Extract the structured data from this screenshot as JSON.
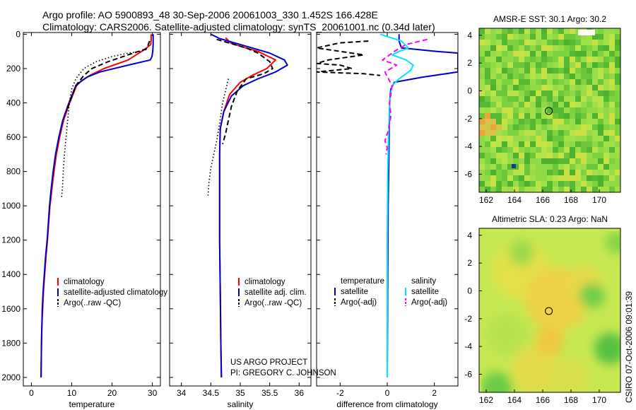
{
  "header": {
    "line1": "Argo profile: AO 5900893_48 30-Sep-2006 20061003_330 1.452S 166.428E",
    "line2": "Climatology: CARS2006. Satellite-adjusted climatology: synTS_20061001.nc (0.34d later)"
  },
  "credit": {
    "project": "US ARGO PROJECT",
    "pi": "PI: GREGORY C. JOHNSON",
    "stamp": "CSIRO 07-Oct-2006 09:01:39"
  },
  "colors": {
    "climatology": "#ff0000",
    "satellite": "#0000cc",
    "argo": "#000000",
    "satellite_salinity": "#00e5ff",
    "argo_salinity_adj": "#ff00ff"
  },
  "depth_axis": {
    "ylim": [
      2050,
      -10
    ],
    "ticks": [
      "0",
      "200",
      "400",
      "600",
      "800",
      "1000",
      "1200",
      "1400",
      "1600",
      "1800",
      "2000"
    ]
  },
  "chart_data": [
    {
      "type": "line",
      "xlabel": "temperature",
      "xlim": [
        -2,
        32
      ],
      "xticks": [
        0,
        10,
        20,
        30
      ],
      "legend": [
        "climatology",
        "satellite-adjusted climatology",
        "Argo(..raw -QC)"
      ],
      "series": [
        {
          "name": "climatology",
          "style": "solid",
          "x": [
            29.7,
            29.7,
            29.6,
            28,
            24,
            18,
            14.5,
            12.5,
            11.2,
            9.5,
            8,
            7,
            6.2,
            5.6,
            5.1,
            4.6,
            4.3,
            4.0,
            3.6,
            3.3,
            3.0,
            2.8,
            2.6,
            2.5,
            2.4
          ],
          "y": [
            0,
            30,
            60,
            90,
            150,
            200,
            240,
            270,
            300,
            400,
            500,
            600,
            700,
            800,
            900,
            1000,
            1100,
            1200,
            1300,
            1400,
            1500,
            1600,
            1700,
            1800,
            2000
          ]
        },
        {
          "name": "satellite-adjusted climatology",
          "style": "solid",
          "x": [
            30.2,
            30.2,
            30.2,
            30.1,
            29.9,
            29.5,
            24,
            17,
            13.8,
            12,
            11,
            9.3,
            7.8,
            6.8,
            6.0,
            5.4,
            4.9,
            4.5,
            4.2,
            3.9,
            3.5,
            3.2,
            2.9,
            2.7,
            2.5,
            2.4
          ],
          "y": [
            0,
            30,
            60,
            100,
            130,
            150,
            180,
            220,
            250,
            280,
            300,
            400,
            500,
            600,
            700,
            800,
            900,
            1000,
            1100,
            1200,
            1300,
            1400,
            1500,
            1600,
            1800,
            2000
          ]
        },
        {
          "name": "Argo(..raw -QC)",
          "style": "dash",
          "x": [
            29.3,
            29.0,
            28.5,
            24,
            19,
            15,
            13,
            12,
            11,
            9.8,
            8.6
          ],
          "y": [
            40,
            60,
            85,
            120,
            160,
            200,
            240,
            270,
            300,
            380,
            450
          ]
        },
        {
          "name": "",
          "style": "dot",
          "x": [
            28.5,
            27,
            24,
            20,
            16,
            13,
            11,
            10,
            9.4,
            9.0,
            8.6,
            8.2,
            7.9,
            7.7,
            7.5
          ],
          "y": [
            90,
            100,
            110,
            130,
            160,
            200,
            260,
            320,
            400,
            500,
            600,
            700,
            800,
            900,
            950
          ]
        }
      ]
    },
    {
      "type": "line",
      "xlabel": "salinity",
      "xlim": [
        33.8,
        36.2
      ],
      "xticks": [
        34,
        34.5,
        35,
        35.5,
        36
      ],
      "legend": [
        "climatology",
        "satellite adj. clim.",
        "Argo(..raw -QC)"
      ],
      "series": [
        {
          "name": "climatology",
          "style": "solid",
          "x": [
            34.75,
            34.83,
            35.0,
            35.3,
            35.6,
            35.45,
            35.2,
            35.0,
            34.82,
            34.72,
            34.66,
            34.65,
            34.65,
            34.65,
            34.66,
            34.67,
            34.68
          ],
          "y": [
            20,
            50,
            70,
            100,
            150,
            200,
            240,
            280,
            350,
            450,
            550,
            700,
            900,
            1200,
            1500,
            1800,
            2000
          ]
        },
        {
          "name": "satellite adj. clim.",
          "style": "solid",
          "x": [
            34.5,
            34.65,
            34.9,
            35.2,
            35.5,
            35.75,
            35.8,
            35.6,
            35.3,
            35.05,
            34.85,
            34.72,
            34.66,
            34.65,
            34.65,
            34.65,
            34.66,
            34.67,
            34.68
          ],
          "y": [
            0,
            25,
            50,
            80,
            110,
            150,
            180,
            220,
            260,
            300,
            360,
            450,
            550,
            700,
            900,
            1200,
            1500,
            1800,
            2000
          ]
        },
        {
          "name": "Argo(..raw -QC)",
          "style": "dash",
          "x": [
            34.6,
            34.9,
            35.1,
            35.3,
            35.5,
            35.55,
            35.4,
            35.1,
            34.95,
            34.85,
            34.8,
            34.75,
            34.7
          ],
          "y": [
            30,
            60,
            80,
            110,
            160,
            200,
            230,
            260,
            330,
            420,
            500,
            580,
            640
          ]
        },
        {
          "name": "",
          "style": "dot",
          "x": [
            34.8,
            34.7,
            34.65,
            34.6,
            34.55,
            34.5,
            34.47,
            34.45
          ],
          "y": [
            260,
            400,
            520,
            620,
            700,
            780,
            860,
            950
          ]
        }
      ]
    },
    {
      "type": "line",
      "xlabel": "difference from climatology",
      "xlim": [
        -3,
        3
      ],
      "xticks": [
        -2,
        0,
        2
      ],
      "legend_temperature_header": "temperature",
      "legend_salinity_header": "salinity",
      "legend": [
        "satellite",
        "Argo(-adj)",
        "satellite",
        "Argo(-adj)"
      ],
      "series": [
        {
          "name": "temperature satellite",
          "style": "solid",
          "x": [
            0.5,
            0.5,
            0.6,
            2.1,
            3.0,
            3.0,
            1.5,
            0.3,
            0.15,
            0.1,
            0.08,
            0.06,
            0.04,
            0.02,
            0.01,
            0.0
          ],
          "y": [
            0,
            40,
            80,
            100,
            110,
            220,
            250,
            280,
            320,
            400,
            600,
            800,
            1000,
            1400,
            1800,
            2000
          ]
        },
        {
          "name": "temperature Argo(-adj)",
          "style": "dash",
          "x": [
            -0.8,
            -2.0,
            -3.0,
            -1.0,
            -2.5,
            -3.0,
            -2.0,
            -1.5,
            -3.0,
            -1.0,
            -0.3
          ],
          "y": [
            40,
            50,
            80,
            120,
            150,
            170,
            180,
            200,
            220,
            230,
            240
          ]
        },
        {
          "name": "salinity satellite",
          "style": "solid",
          "x": [
            -0.3,
            0.6,
            0.9,
            0.5,
            0.2,
            0.8,
            1.1,
            1.0,
            0.5,
            0.2,
            0.1,
            0.05,
            0.02,
            0.0,
            0.0,
            0.0
          ],
          "y": [
            0,
            40,
            80,
            100,
            120,
            150,
            180,
            210,
            260,
            300,
            400,
            600,
            800,
            1200,
            1600,
            2000
          ]
        },
        {
          "name": "salinity Argo(-adj)",
          "style": "dash",
          "x": [
            1.7,
            0.8,
            0.3,
            -0.2,
            0.4,
            -0.1,
            0.2,
            0.1,
            0.15,
            0.05,
            -0.1,
            0.0,
            -0.05
          ],
          "y": [
            30,
            60,
            100,
            150,
            180,
            220,
            300,
            400,
            480,
            560,
            620,
            660,
            700
          ]
        }
      ]
    }
  ],
  "maps": [
    {
      "title": "AMSR-E SST: 30.1 Argo: 30.2",
      "xticks": [
        "162",
        "164",
        "166",
        "168",
        "170"
      ],
      "yticks": [
        "4",
        "2",
        "0",
        "-2",
        "-4",
        "-6"
      ],
      "xlim": [
        161.5,
        171.5
      ],
      "ylim": [
        -7.3,
        4.5
      ],
      "marker": {
        "lon": 166.43,
        "lat": -1.45
      },
      "style": "pixel"
    },
    {
      "title": "Altimetric SLA: 0.23 Argo: NaN",
      "xticks": [
        "162",
        "164",
        "166",
        "168",
        "170"
      ],
      "yticks": [
        "4",
        "2",
        "0",
        "-2",
        "-4",
        "-6"
      ],
      "xlim": [
        161.5,
        171.5
      ],
      "ylim": [
        -7.3,
        4.5
      ],
      "marker": {
        "lon": 166.43,
        "lat": -1.45
      },
      "style": "smooth"
    }
  ]
}
